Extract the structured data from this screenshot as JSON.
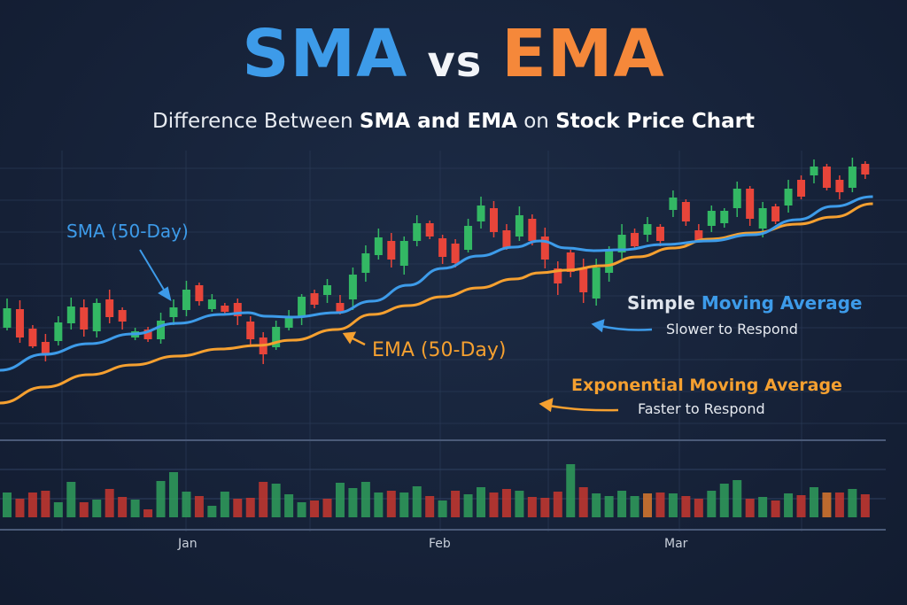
{
  "title": {
    "part1": "SMA",
    "part2": "vs",
    "part3": "EMA"
  },
  "subtitle": {
    "pre": "Difference Between ",
    "bold1": "SMA and EMA",
    "mid": " on ",
    "bold2": "Stock Price Chart"
  },
  "annotations": {
    "sma_label": "SMA (50-Day)",
    "ema_label": "EMA (50-Day)",
    "sma_legend_a": "Simple ",
    "sma_legend_b": "Moving Average",
    "sma_desc": "Slower to Respond",
    "ema_legend": "Exponential Moving Average",
    "ema_desc": "Faster to Respond"
  },
  "colors": {
    "sma": "#3d9be9",
    "ema": "#f5a030",
    "up": "#33b864",
    "down": "#e8453a",
    "neutral": "#d9782e",
    "background": "#16223a"
  },
  "chart_data": {
    "type": "candlestick",
    "title": "SMA vs EMA",
    "xlabel": "",
    "ylabel": "",
    "x_ticks": [
      {
        "label": "Jan",
        "index": 14.2
      },
      {
        "label": "Feb",
        "index": 33.8
      },
      {
        "label": "Mar",
        "index": 52.3
      }
    ],
    "ylim": [
      0,
      330
    ],
    "grid": true,
    "candles_ohlc": [
      [
        130,
        152,
        163,
        127
      ],
      [
        151,
        119,
        161,
        113
      ],
      [
        129,
        109,
        133,
        107
      ],
      [
        114,
        100,
        123,
        92
      ],
      [
        115,
        136,
        143,
        110
      ],
      [
        135,
        154,
        164,
        128
      ],
      [
        153,
        128,
        162,
        120
      ],
      [
        126,
        158,
        163,
        119
      ],
      [
        162,
        142,
        173,
        135
      ],
      [
        150,
        137,
        153,
        128
      ],
      [
        119,
        126,
        130,
        116
      ],
      [
        128,
        117,
        131,
        114
      ],
      [
        117,
        138,
        147,
        112
      ],
      [
        142,
        153,
        162,
        133
      ],
      [
        150,
        173,
        183,
        143
      ],
      [
        178,
        160,
        181,
        155
      ],
      [
        151,
        162,
        168,
        148
      ],
      [
        155,
        148,
        158,
        145
      ],
      [
        158,
        143,
        163,
        133
      ],
      [
        137,
        117,
        143,
        110
      ],
      [
        119,
        100,
        125,
        89
      ],
      [
        108,
        131,
        138,
        105
      ],
      [
        130,
        142,
        150,
        127
      ],
      [
        142,
        165,
        168,
        133
      ],
      [
        169,
        156,
        173,
        152
      ],
      [
        167,
        178,
        185,
        158
      ],
      [
        158,
        147,
        167,
        145
      ],
      [
        162,
        190,
        198,
        150
      ],
      [
        192,
        214,
        223,
        182
      ],
      [
        212,
        232,
        242,
        207
      ],
      [
        228,
        207,
        237,
        198
      ],
      [
        200,
        228,
        233,
        190
      ],
      [
        228,
        248,
        257,
        222
      ],
      [
        248,
        233,
        251,
        230
      ],
      [
        231,
        210,
        235,
        202
      ],
      [
        225,
        203,
        230,
        198
      ],
      [
        218,
        245,
        253,
        215
      ],
      [
        250,
        268,
        278,
        242
      ],
      [
        265,
        238,
        273,
        232
      ],
      [
        240,
        220,
        247,
        218
      ],
      [
        233,
        257,
        267,
        228
      ],
      [
        253,
        228,
        258,
        223
      ],
      [
        233,
        207,
        243,
        197
      ],
      [
        197,
        180,
        205,
        167
      ],
      [
        215,
        193,
        218,
        187
      ],
      [
        197,
        170,
        208,
        158
      ],
      [
        163,
        198,
        208,
        155
      ],
      [
        192,
        217,
        222,
        182
      ],
      [
        215,
        235,
        247,
        205
      ],
      [
        237,
        222,
        242,
        220
      ],
      [
        235,
        247,
        255,
        227
      ],
      [
        244,
        228,
        247,
        222
      ],
      [
        263,
        277,
        285,
        255
      ],
      [
        272,
        250,
        275,
        245
      ],
      [
        240,
        228,
        247,
        227
      ],
      [
        245,
        262,
        268,
        238
      ],
      [
        248,
        262,
        265,
        243
      ],
      [
        265,
        287,
        295,
        255
      ],
      [
        287,
        253,
        290,
        245
      ],
      [
        242,
        265,
        272,
        232
      ],
      [
        267,
        250,
        270,
        247
      ],
      [
        268,
        287,
        297,
        260
      ],
      [
        297,
        278,
        302,
        275
      ],
      [
        302,
        312,
        320,
        293
      ],
      [
        312,
        288,
        315,
        285
      ],
      [
        297,
        283,
        302,
        275
      ],
      [
        288,
        312,
        322,
        283
      ],
      [
        315,
        303,
        318,
        298
      ]
    ],
    "series": [
      {
        "name": "SMA (50-Day)",
        "points": [
          [
            -0.6,
            82
          ],
          [
            2.9,
            100
          ],
          [
            6.4,
            112
          ],
          [
            9.8,
            123
          ],
          [
            13.3,
            135
          ],
          [
            16.7,
            145
          ],
          [
            18.8,
            147
          ],
          [
            20.2,
            143
          ],
          [
            22.3,
            142
          ],
          [
            25.7,
            147
          ],
          [
            28.5,
            160
          ],
          [
            31.3,
            178
          ],
          [
            34.0,
            197
          ],
          [
            36.8,
            211
          ],
          [
            39.6,
            221
          ],
          [
            41.6,
            228
          ],
          [
            43.7,
            220
          ],
          [
            45.8,
            217
          ],
          [
            47.9,
            218
          ],
          [
            51.3,
            224
          ],
          [
            54.8,
            228
          ],
          [
            58.2,
            235
          ],
          [
            61.7,
            252
          ],
          [
            64.5,
            267
          ],
          [
            67.6,
            278
          ]
        ]
      },
      {
        "name": "EMA (50-Day)",
        "points": [
          [
            -0.6,
            45
          ],
          [
            2.9,
            63
          ],
          [
            6.4,
            77
          ],
          [
            9.8,
            88
          ],
          [
            13.3,
            98
          ],
          [
            16.7,
            106
          ],
          [
            19.5,
            110
          ],
          [
            22.3,
            116
          ],
          [
            25.7,
            128
          ],
          [
            28.5,
            145
          ],
          [
            31.3,
            155
          ],
          [
            34.0,
            165
          ],
          [
            36.8,
            175
          ],
          [
            39.6,
            185
          ],
          [
            41.6,
            192
          ],
          [
            43.7,
            195
          ],
          [
            46.5,
            200
          ],
          [
            49.2,
            210
          ],
          [
            52.0,
            220
          ],
          [
            54.8,
            230
          ],
          [
            58.2,
            237
          ],
          [
            61.7,
            247
          ],
          [
            64.5,
            255
          ],
          [
            67.6,
            270
          ]
        ]
      }
    ],
    "volume": {
      "values": [
        28,
        21,
        28,
        30,
        17,
        40,
        17,
        20,
        32,
        23,
        20,
        9,
        41,
        51,
        29,
        24,
        13,
        29,
        21,
        22,
        40,
        38,
        26,
        17,
        19,
        21,
        39,
        33,
        40,
        28,
        30,
        28,
        35,
        24,
        19,
        30,
        26,
        34,
        28,
        32,
        30,
        23,
        22,
        29,
        60,
        34,
        27,
        24,
        30,
        24,
        27,
        28,
        27,
        24,
        21,
        30,
        38,
        42,
        21,
        23,
        19,
        27,
        25,
        34,
        28,
        28,
        32,
        26
      ],
      "direction": [
        "up",
        "down",
        "down",
        "down",
        "up",
        "up",
        "down",
        "up",
        "down",
        "down",
        "up",
        "down",
        "up",
        "up",
        "up",
        "down",
        "up",
        "up",
        "down",
        "down",
        "down",
        "up",
        "up",
        "up",
        "down",
        "down",
        "up",
        "up",
        "up",
        "up",
        "down",
        "up",
        "up",
        "down",
        "up",
        "down",
        "up",
        "up",
        "down",
        "down",
        "up",
        "down",
        "down",
        "down",
        "up",
        "down",
        "up",
        "up",
        "up",
        "up",
        "neutral",
        "down",
        "up",
        "down",
        "down",
        "up",
        "up",
        "up",
        "down",
        "up",
        "down",
        "up",
        "down",
        "up",
        "neutral",
        "down",
        "up",
        "down"
      ]
    }
  }
}
